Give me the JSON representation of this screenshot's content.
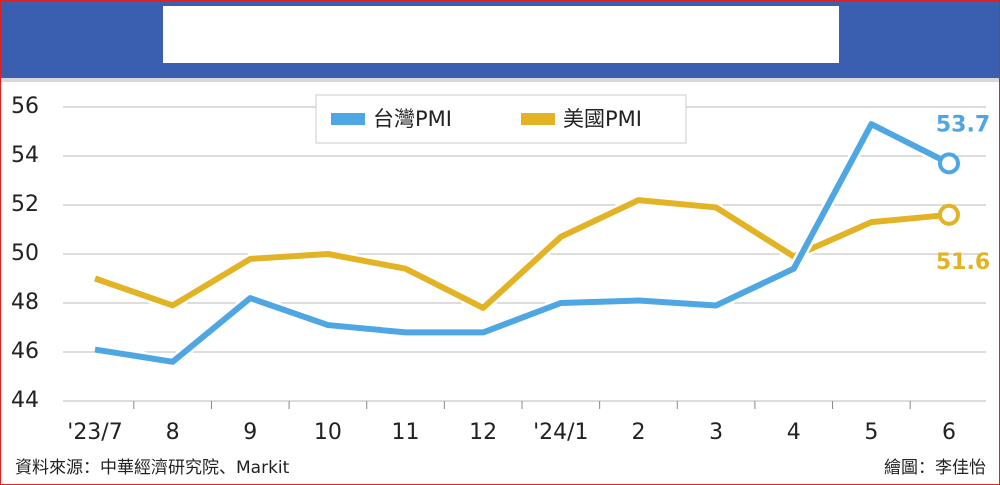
{
  "chart_data": {
    "type": "line",
    "categories": [
      "'23/7",
      "8",
      "9",
      "10",
      "11",
      "12",
      "'24/1",
      "2",
      "3",
      "4",
      "5",
      "6"
    ],
    "series": [
      {
        "name": "台灣PMI",
        "color": "#4ea6e2",
        "values": [
          46.1,
          45.6,
          48.2,
          47.1,
          46.8,
          46.8,
          48.0,
          48.1,
          47.9,
          49.4,
          55.3,
          53.7
        ]
      },
      {
        "name": "美國PMI",
        "color": "#e2b425",
        "values": [
          49.0,
          47.9,
          49.8,
          50.0,
          49.4,
          47.8,
          50.7,
          52.2,
          51.9,
          49.9,
          51.3,
          51.6
        ]
      }
    ],
    "ylim": [
      44,
      56
    ],
    "yticks": [
      44,
      46,
      48,
      50,
      52,
      54,
      56
    ],
    "grid": true,
    "source": "資料來源：中華經濟研究院、Markit",
    "credit": "繪圖：李佳怡"
  }
}
